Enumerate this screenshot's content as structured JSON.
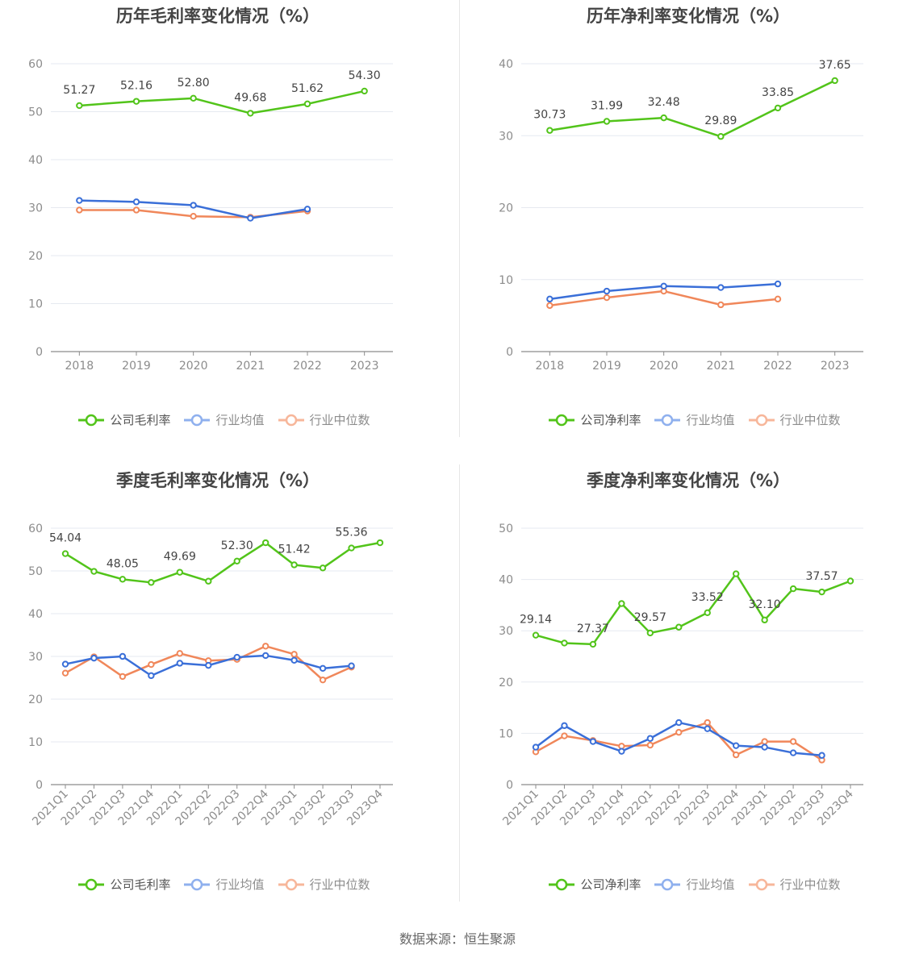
{
  "colors": {
    "company": "#52c41a",
    "avg": "#3a6fd8",
    "median": "#f0875a",
    "grid": "#e6e9f0",
    "axis": "#8c8c8c"
  },
  "source_text": "数据来源：恒生聚源",
  "panels": [
    {
      "title": "历年毛利率变化情况（%）",
      "legend": [
        "公司毛利率",
        "行业均值",
        "行业中位数"
      ],
      "chart_data": {
        "type": "line",
        "categories": [
          "2018",
          "2019",
          "2020",
          "2021",
          "2022",
          "2023"
        ],
        "ylim": [
          0,
          60
        ],
        "yticks": [
          0,
          10,
          20,
          30,
          40,
          50,
          60
        ],
        "series": [
          {
            "name": "公司毛利率",
            "values": [
              51.27,
              52.16,
              52.8,
              49.68,
              51.62,
              54.3
            ],
            "labels": [
              "51.27",
              "52.16",
              "52.80",
              "49.68",
              "51.62",
              "54.30"
            ]
          },
          {
            "name": "行业均值",
            "values": [
              31.5,
              31.2,
              30.5,
              27.8,
              29.7,
              null
            ]
          },
          {
            "name": "行业中位数",
            "values": [
              29.5,
              29.5,
              28.2,
              28.0,
              29.3,
              null
            ]
          }
        ]
      }
    },
    {
      "title": "历年净利率变化情况（%）",
      "legend": [
        "公司净利率",
        "行业均值",
        "行业中位数"
      ],
      "chart_data": {
        "type": "line",
        "categories": [
          "2018",
          "2019",
          "2020",
          "2021",
          "2022",
          "2023"
        ],
        "ylim": [
          0,
          40
        ],
        "yticks": [
          0,
          10,
          20,
          30,
          40
        ],
        "series": [
          {
            "name": "公司净利率",
            "values": [
              30.73,
              31.99,
              32.48,
              29.89,
              33.85,
              37.65
            ],
            "labels": [
              "30.73",
              "31.99",
              "32.48",
              "29.89",
              "33.85",
              "37.65"
            ]
          },
          {
            "name": "行业均值",
            "values": [
              7.3,
              8.4,
              9.1,
              8.9,
              9.4,
              null
            ]
          },
          {
            "name": "行业中位数",
            "values": [
              6.4,
              7.5,
              8.4,
              6.5,
              7.3,
              null
            ]
          }
        ]
      }
    },
    {
      "title": "季度毛利率变化情况（%）",
      "legend": [
        "公司毛利率",
        "行业均值",
        "行业中位数"
      ],
      "chart_data": {
        "type": "line",
        "categories": [
          "2021Q1",
          "2021Q2",
          "2021Q3",
          "2021Q4",
          "2022Q1",
          "2022Q2",
          "2022Q3",
          "2022Q4",
          "2023Q1",
          "2023Q2",
          "2023Q3",
          "2023Q4"
        ],
        "ylim": [
          0,
          60
        ],
        "yticks": [
          0,
          10,
          20,
          30,
          40,
          50,
          60
        ],
        "series": [
          {
            "name": "公司毛利率",
            "values": [
              54.04,
              49.9,
              48.05,
              47.3,
              49.69,
              47.6,
              52.3,
              56.6,
              51.42,
              50.7,
              55.36,
              56.6
            ],
            "labels": [
              "54.04",
              "",
              "48.05",
              "",
              "49.69",
              "",
              "52.30",
              "",
              "51.42",
              "",
              "55.36",
              ""
            ]
          },
          {
            "name": "行业均值",
            "values": [
              28.2,
              29.6,
              30.0,
              25.5,
              28.4,
              27.9,
              29.8,
              30.2,
              29.1,
              27.2,
              27.8,
              null
            ]
          },
          {
            "name": "行业中位数",
            "values": [
              26.1,
              29.9,
              25.3,
              28.1,
              30.7,
              29.0,
              29.3,
              32.4,
              30.5,
              24.5,
              27.5,
              null
            ]
          }
        ]
      }
    },
    {
      "title": "季度净利率变化情况（%）",
      "legend": [
        "公司净利率",
        "行业均值",
        "行业中位数"
      ],
      "chart_data": {
        "type": "line",
        "categories": [
          "2021Q1",
          "2021Q2",
          "2021Q3",
          "2021Q4",
          "2022Q1",
          "2022Q2",
          "2022Q3",
          "2022Q4",
          "2023Q1",
          "2023Q2",
          "2023Q3",
          "2023Q4"
        ],
        "ylim": [
          0,
          50
        ],
        "yticks": [
          0,
          10,
          20,
          30,
          40,
          50
        ],
        "series": [
          {
            "name": "公司净利率",
            "values": [
              29.14,
              27.6,
              27.37,
              35.3,
              29.57,
              30.7,
              33.52,
              41.1,
              32.1,
              38.2,
              37.57,
              39.7
            ],
            "labels": [
              "29.14",
              "",
              "27.37",
              "",
              "29.57",
              "",
              "33.52",
              "",
              "32.10",
              "",
              "37.57",
              ""
            ]
          },
          {
            "name": "行业均值",
            "values": [
              7.3,
              11.5,
              8.4,
              6.5,
              9.0,
              12.1,
              10.9,
              7.6,
              7.3,
              6.2,
              5.7,
              null
            ]
          },
          {
            "name": "行业中位数",
            "values": [
              6.4,
              9.5,
              8.6,
              7.5,
              7.7,
              10.2,
              12.1,
              5.8,
              8.4,
              8.4,
              4.8,
              null
            ]
          }
        ]
      }
    }
  ]
}
